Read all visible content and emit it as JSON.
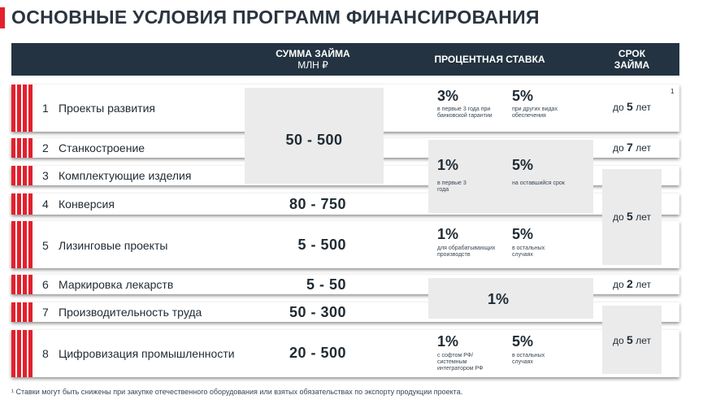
{
  "title": "ОСНОВНЫЕ УСЛОВИЯ ПРОГРАММ ФИНАНСИРОВАНИЯ",
  "header": {
    "amount_line1": "СУММА ЗАЙМА",
    "amount_line2": "МЛН ₽",
    "rate": "ПРОЦЕНТНАЯ СТАВКА",
    "term_line1": "СРОК",
    "term_line2": "ЗАЙМА"
  },
  "rows": [
    {
      "num": "1",
      "name": "Проекты развития"
    },
    {
      "num": "2",
      "name": "Станкостроение"
    },
    {
      "num": "3",
      "name": "Комплектующие изделия"
    },
    {
      "num": "4",
      "name": "Конверсия"
    },
    {
      "num": "5",
      "name": "Лизинговые проекты"
    },
    {
      "num": "6",
      "name": "Маркировка лекарств"
    },
    {
      "num": "7",
      "name": "Производительность труда"
    },
    {
      "num": "8",
      "name": "Цифровизация промышленности"
    }
  ],
  "amounts": {
    "a1": "50 - 500",
    "a4": "80 - 750",
    "a5": "5 - 500",
    "a6": "5 - 50",
    "a7": "50 - 300",
    "a8": "20 - 500"
  },
  "rates": {
    "r1a_value": "3%",
    "r1a_note": "в первые 3 года при банковской гарантии",
    "r1b_value": "5%",
    "r1b_note": "при других видах обеспечения",
    "r2a_value": "1%",
    "r2a_note": "в первые 3 года",
    "r2b_value": "5%",
    "r2b_note": "на оставшийся срок",
    "r5a_value": "1%",
    "r5a_note": "для обрабатывающих производств",
    "r5b_value": "5%",
    "r5b_note": "в остальных случаях",
    "r6_value": "1%",
    "r8a_value": "1%",
    "r8a_note": "с софтом РФ/ системным интегратором РФ",
    "r8b_value": "5%",
    "r8b_note": "в остальных случаях"
  },
  "terms": {
    "prefix": "до",
    "t1_years": "5",
    "t2_years": "7",
    "t3_years": "5",
    "t6_years": "2",
    "t8_years": "5",
    "unit": "лет"
  },
  "footnote_mark": "1",
  "footnote": "¹ Ставки могут быть снижены при закупке отечественного оборудования или взятых обязательствах по экспорту продукции проекта."
}
